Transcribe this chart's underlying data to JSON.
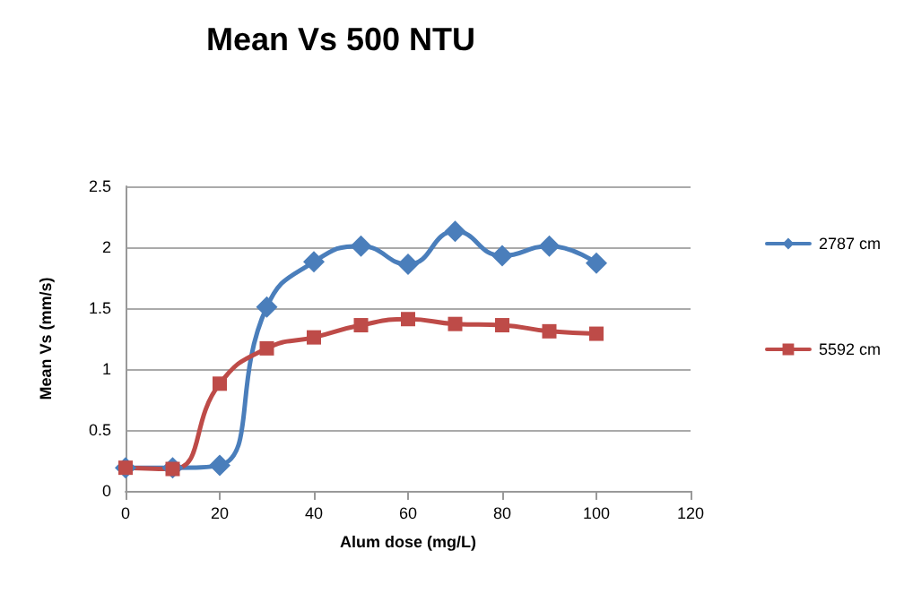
{
  "chart_data": {
    "type": "line",
    "title": "Mean Vs 500 NTU",
    "xlabel": "Alum dose (mg/L)",
    "ylabel": "Mean Vs (mm/s)",
    "x": [
      0,
      10,
      20,
      30,
      40,
      50,
      60,
      70,
      80,
      90,
      100
    ],
    "series": [
      {
        "name": "2787 cm",
        "color": "#4a7ebb",
        "marker": "diamond",
        "values": [
          0.19,
          0.19,
          0.21,
          1.51,
          1.88,
          2.01,
          1.86,
          2.13,
          1.93,
          2.01,
          1.87
        ]
      },
      {
        "name": "5592 cm",
        "color": "#be4b48",
        "marker": "square",
        "values": [
          0.19,
          0.18,
          0.88,
          1.17,
          1.26,
          1.36,
          1.41,
          1.37,
          1.36,
          1.31,
          1.29
        ]
      }
    ],
    "xlim": [
      0,
      120
    ],
    "xticks": [
      0,
      20,
      40,
      60,
      80,
      100,
      120
    ],
    "ylim": [
      0,
      2.5
    ],
    "yticks": [
      0,
      0.5,
      1,
      1.5,
      2,
      2.5
    ],
    "grid": "y",
    "legend": "right"
  }
}
